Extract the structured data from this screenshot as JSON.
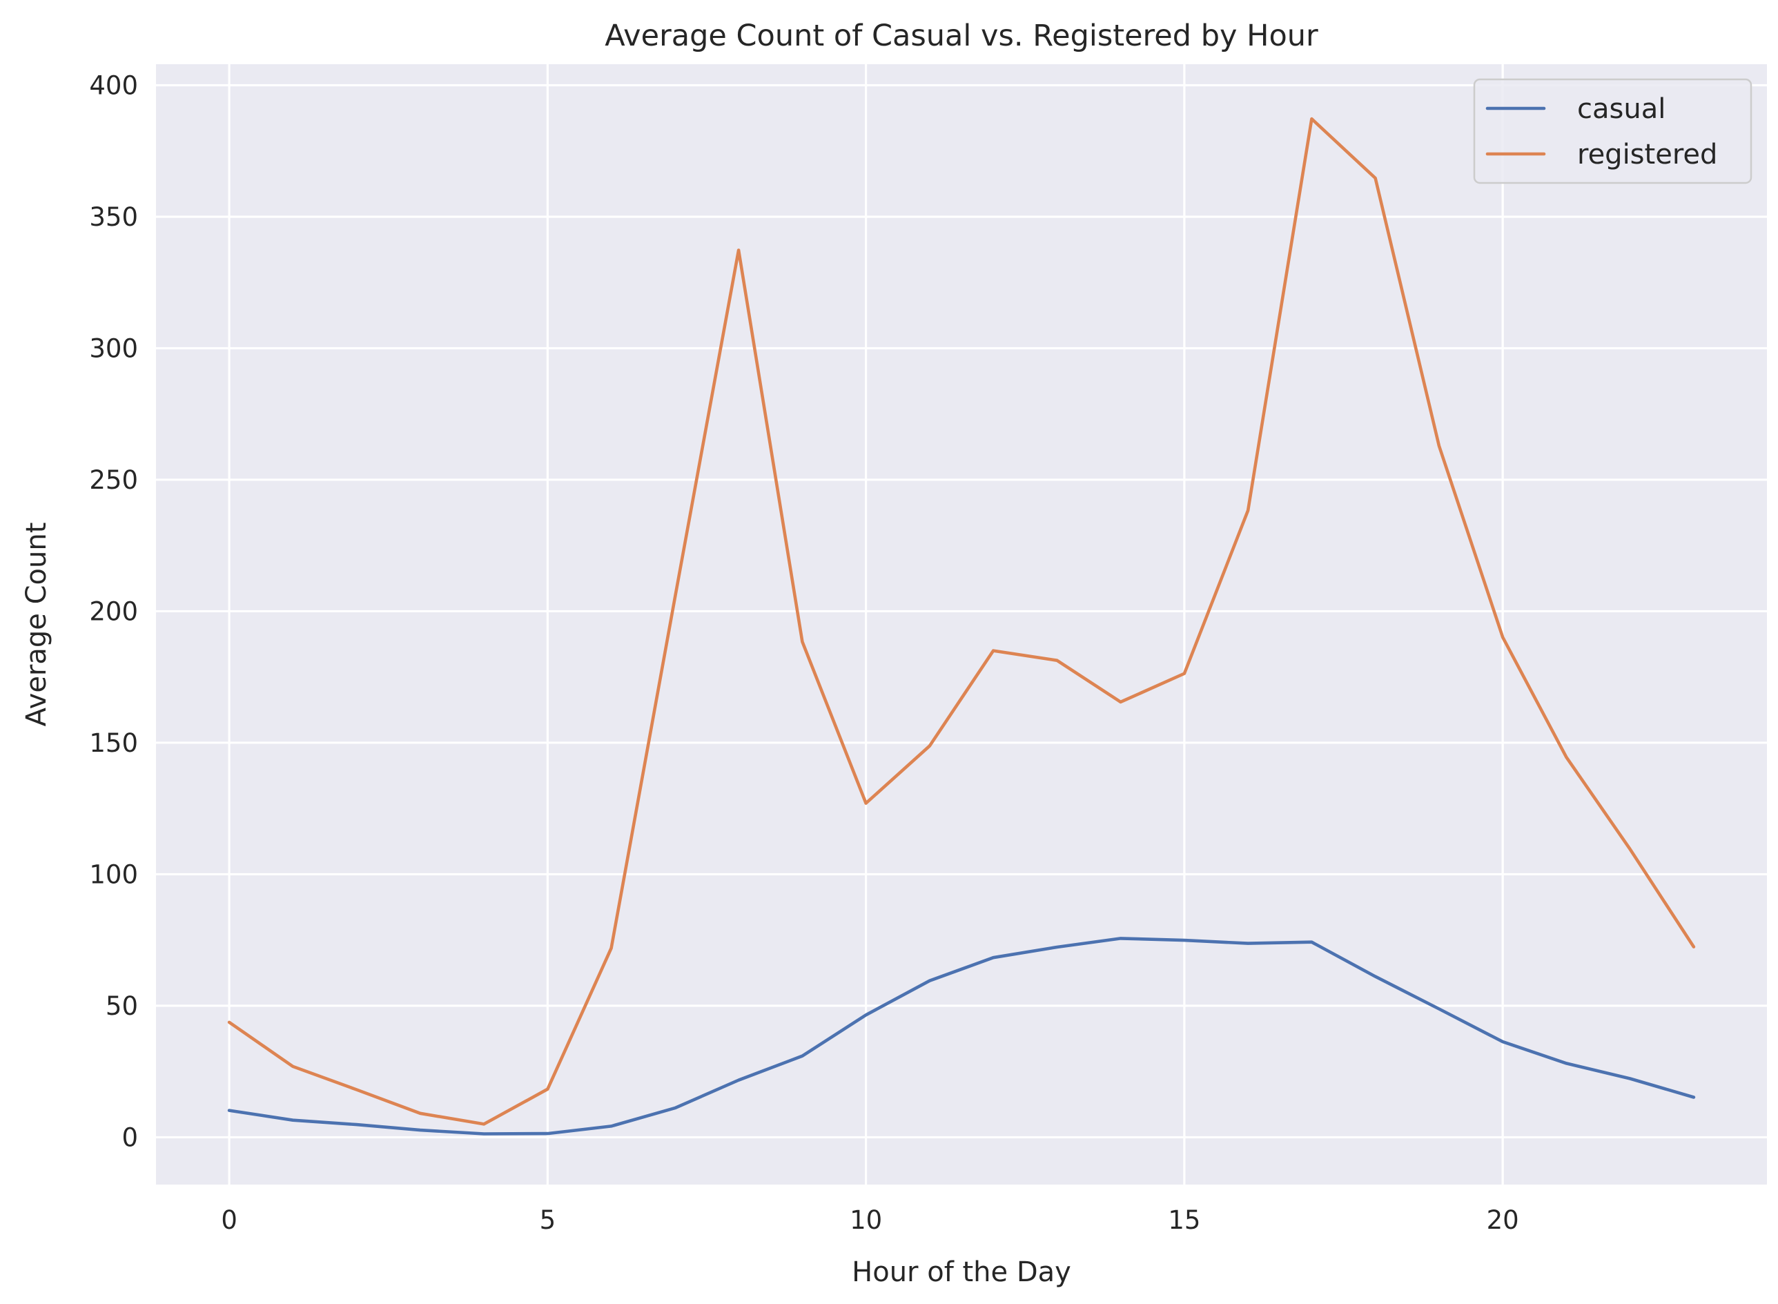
{
  "chart_data": {
    "type": "line",
    "title": "Average Count of Casual vs. Registered by Hour",
    "xlabel": "Hour of the Day",
    "ylabel": "Average Count",
    "xlim": [
      -1.15,
      24.15
    ],
    "ylim": [
      -18,
      408
    ],
    "xticks": [
      0,
      5,
      10,
      15,
      20
    ],
    "yticks": [
      0,
      50,
      100,
      150,
      200,
      250,
      300,
      350,
      400
    ],
    "grid": true,
    "legend_position": "top-right",
    "background_color": "#eaeaf2",
    "grid_color": "#ffffff",
    "x": [
      0,
      1,
      2,
      3,
      4,
      5,
      6,
      7,
      8,
      9,
      10,
      11,
      12,
      13,
      14,
      15,
      16,
      17,
      18,
      19,
      20,
      21,
      22,
      23
    ],
    "series": [
      {
        "name": "casual",
        "color": "#4c72b0",
        "values": [
          10.2,
          6.5,
          4.8,
          2.7,
          1.3,
          1.4,
          4.2,
          11.1,
          21.7,
          30.9,
          46.5,
          59.5,
          68.3,
          72.3,
          75.6,
          74.9,
          73.7,
          74.2,
          61.1,
          48.8,
          36.3,
          28.1,
          22.3,
          15.2
        ]
      },
      {
        "name": "registered",
        "color": "#dd8452",
        "values": [
          43.7,
          26.9,
          18.1,
          9.1,
          5.0,
          18.3,
          71.9,
          205.2,
          337.3,
          188.4,
          127.0,
          148.8,
          185.0,
          181.3,
          165.5,
          176.3,
          238.3,
          387.2,
          364.7,
          262.9,
          190.1,
          144.5,
          109.5,
          72.4
        ]
      }
    ]
  }
}
